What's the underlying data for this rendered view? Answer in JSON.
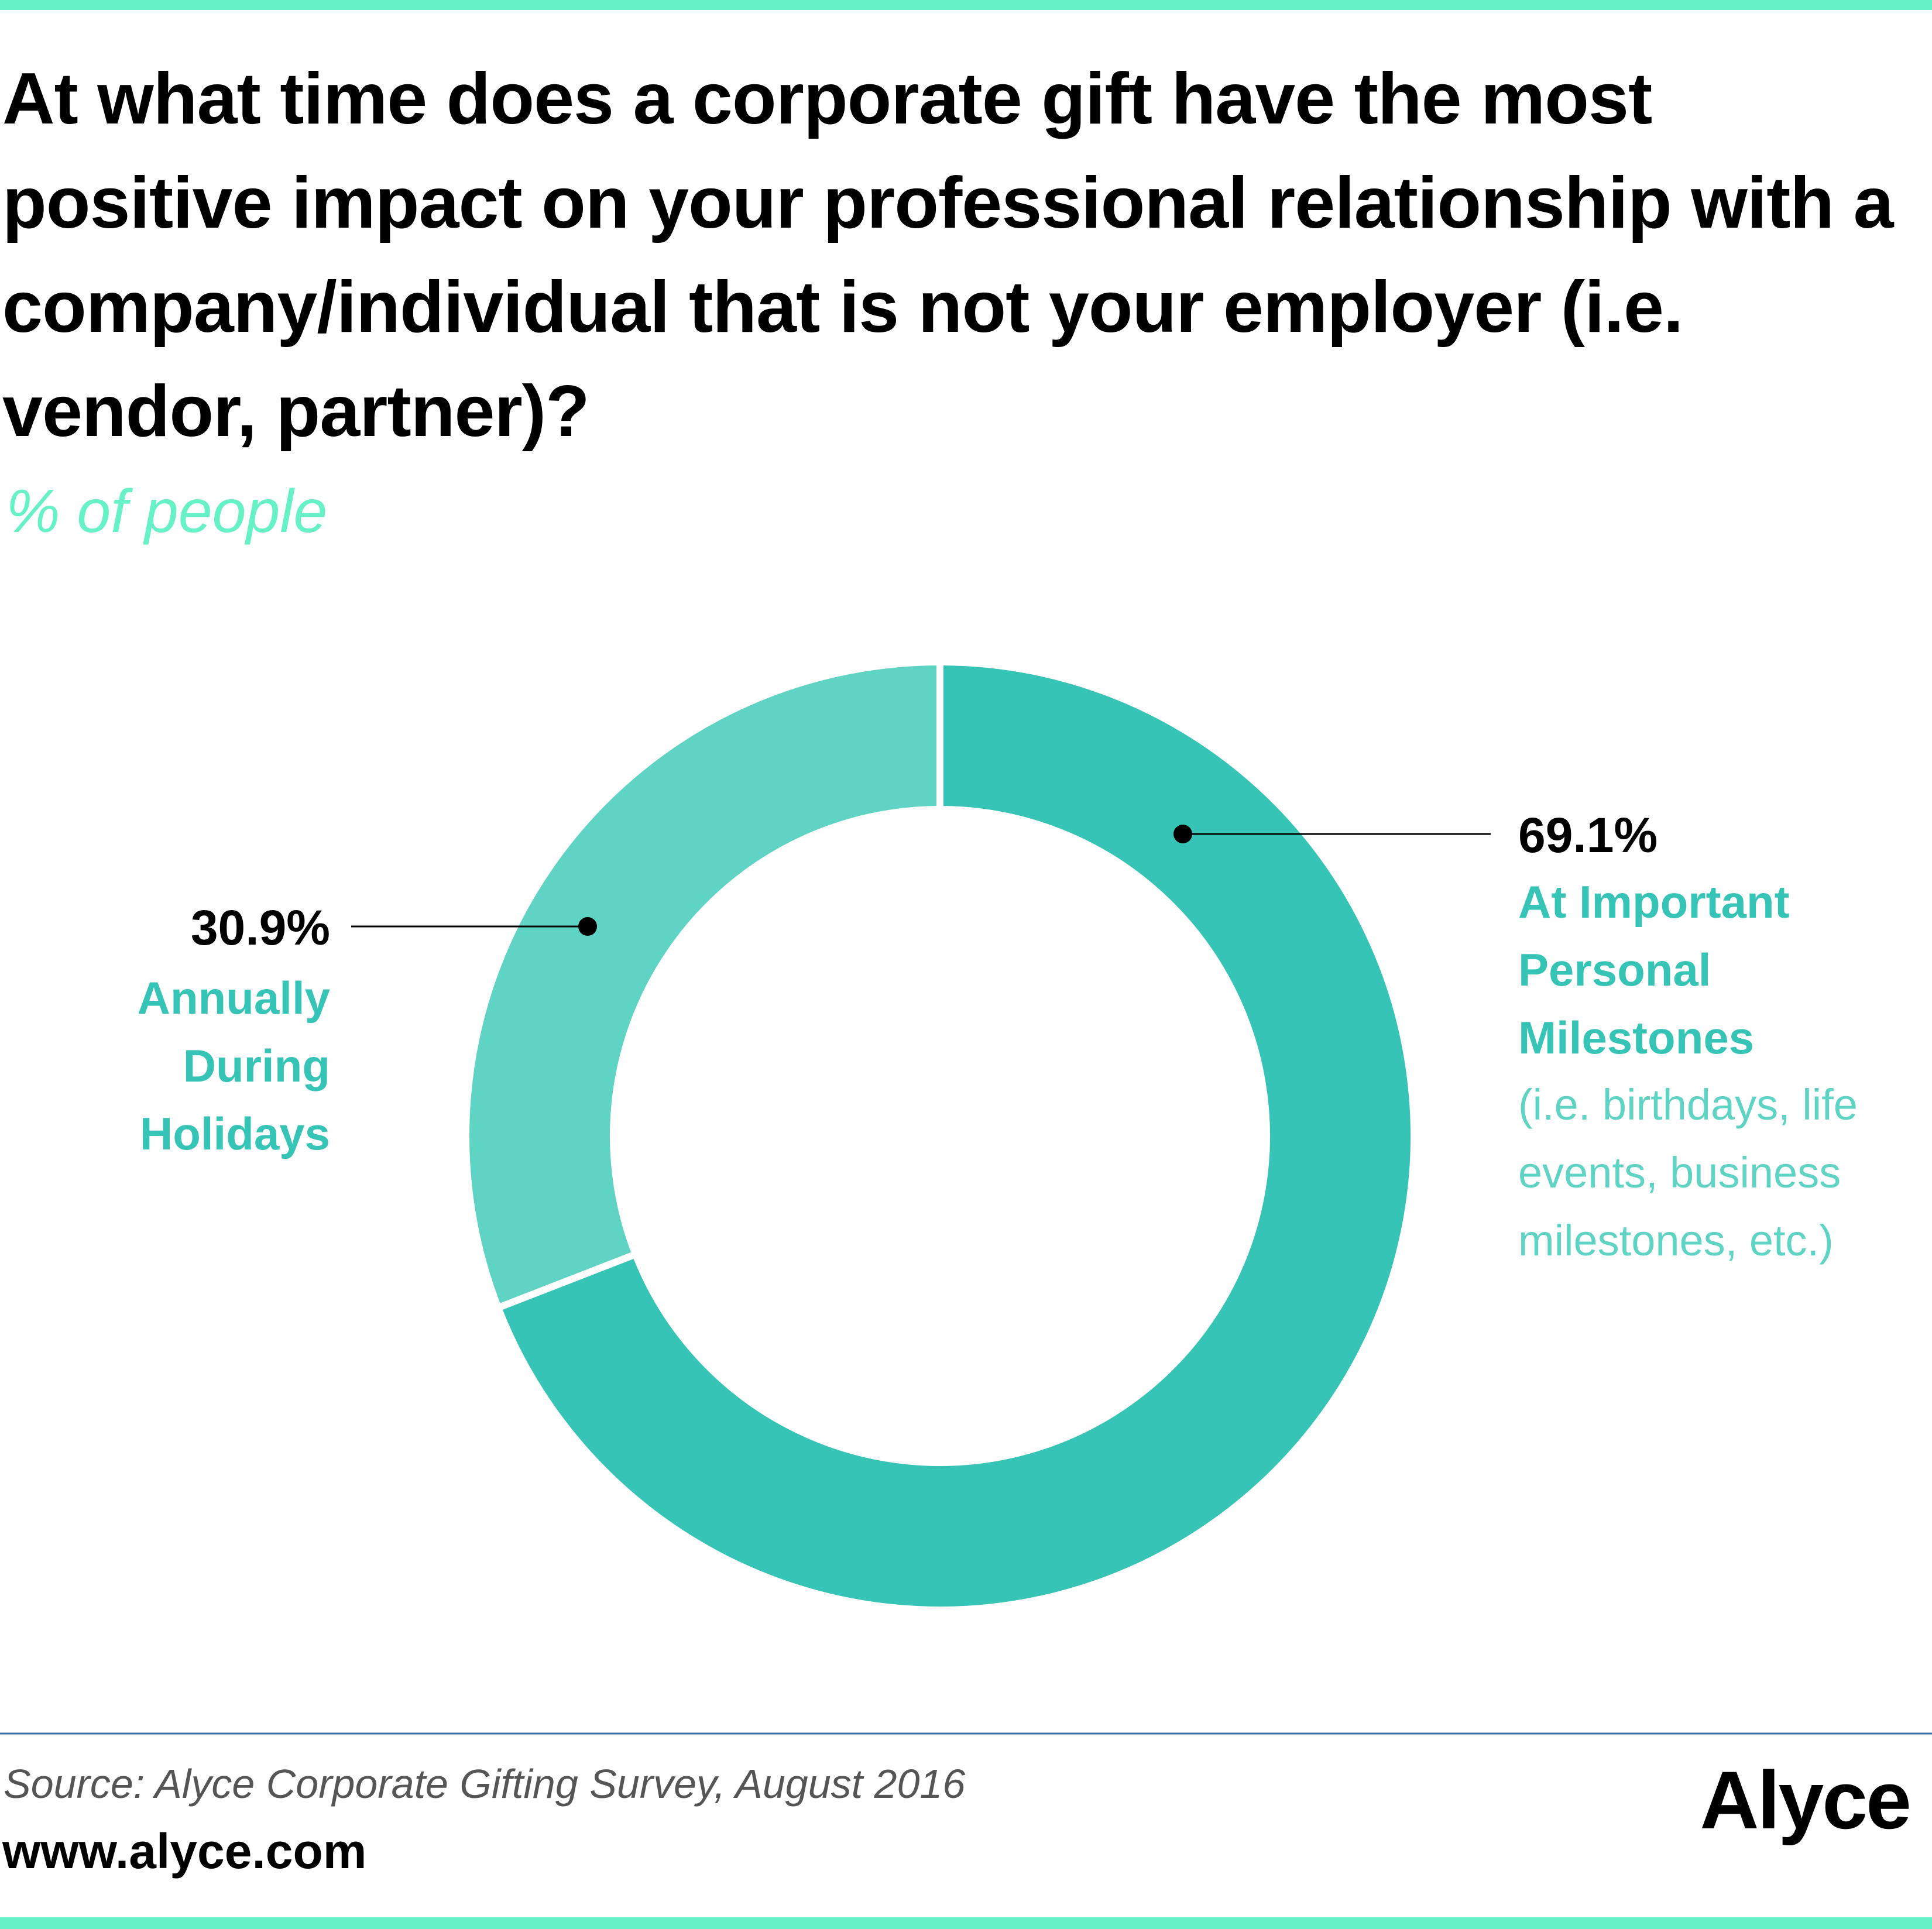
{
  "chart_data": {
    "type": "donut",
    "title": "At what time does a corporate gift have the most positive impact on your professional relationship with a company/individual that is not your employer (i.e. vendor, partner)?",
    "subtitle": "% of people",
    "categories": [
      "At Important Personal Milestones",
      "Annually During Holidays"
    ],
    "annotations": [
      "(i.e. birthdays, life events, business milestones, etc.)"
    ],
    "values": [
      69.1,
      30.9
    ],
    "value_labels": [
      "69.1%",
      "30.9%"
    ],
    "colors": [
      "#36c4b6",
      "#5fd3c4"
    ],
    "source": "Source: Alyce Corporate Gifting Survey, August 2016",
    "url": "www.alyce.com",
    "brand": "Alyce"
  }
}
